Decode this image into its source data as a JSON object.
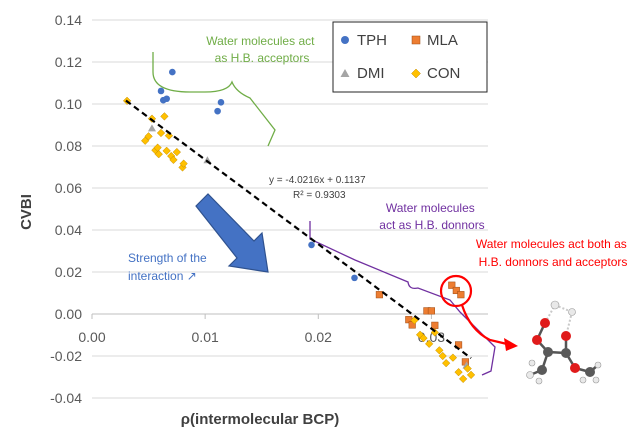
{
  "chart_data": {
    "type": "scatter",
    "xlabel": "ρ(intermolecular BCP)",
    "ylabel": "CVBI",
    "xlim": [
      0.0,
      0.035
    ],
    "ylim": [
      -0.04,
      0.14
    ],
    "x_ticks": [
      "0.00",
      "0.01",
      "0.02",
      "0.03"
    ],
    "y_ticks": [
      "0.14",
      "0.12",
      "0.10",
      "0.08",
      "0.06",
      "0.04",
      "0.02",
      "0.00",
      "-0.02",
      "-0.04"
    ],
    "grid": "horizontal",
    "legend_position": "top-right",
    "series": [
      {
        "name": "TPH",
        "marker": "circle",
        "color": "#4472C4",
        "points": [
          [
            0.0061,
            0.1062
          ],
          [
            0.0063,
            0.1018
          ],
          [
            0.0066,
            0.1025
          ],
          [
            0.0071,
            0.1152
          ],
          [
            0.0111,
            0.0966
          ],
          [
            0.0114,
            0.1008
          ],
          [
            0.0194,
            0.0329
          ],
          [
            0.0232,
            0.0172
          ]
        ]
      },
      {
        "name": "MLA",
        "marker": "square",
        "color": "#ED7D31",
        "points": [
          [
            0.0254,
            0.0092
          ],
          [
            0.028,
            -0.0027
          ],
          [
            0.0283,
            -0.0052
          ],
          [
            0.0296,
            0.0015
          ],
          [
            0.03,
            0.0015
          ],
          [
            0.0303,
            -0.0054
          ],
          [
            0.0318,
            0.0137
          ],
          [
            0.0322,
            0.0112
          ],
          [
            0.0326,
            0.0092
          ],
          [
            0.0324,
            -0.0147
          ],
          [
            0.033,
            -0.0228
          ]
        ]
      },
      {
        "name": "DMI",
        "marker": "triangle",
        "color": "#A5A5A5",
        "points": [
          [
            0.0053,
            0.0884
          ],
          [
            0.0102,
            0.0732
          ],
          [
            0.0331,
            -0.0245
          ]
        ]
      },
      {
        "name": "CON",
        "marker": "diamond",
        "color": "#FFC000",
        "points": [
          [
            0.0031,
            0.1015
          ],
          [
            0.0053,
            0.093
          ],
          [
            0.0047,
            0.0825
          ],
          [
            0.005,
            0.0846
          ],
          [
            0.0056,
            0.078
          ],
          [
            0.0058,
            0.0792
          ],
          [
            0.0059,
            0.0761
          ],
          [
            0.0061,
            0.0862
          ],
          [
            0.0064,
            0.0941
          ],
          [
            0.0066,
            0.0777
          ],
          [
            0.0068,
            0.0849
          ],
          [
            0.007,
            0.0752
          ],
          [
            0.0072,
            0.0734
          ],
          [
            0.0075,
            0.0771
          ],
          [
            0.008,
            0.0698
          ],
          [
            0.0081,
            0.0716
          ],
          [
            0.0285,
            -0.003
          ],
          [
            0.029,
            -0.0099
          ],
          [
            0.0293,
            -0.0115
          ],
          [
            0.0298,
            -0.0142
          ],
          [
            0.0303,
            -0.0088
          ],
          [
            0.0307,
            -0.0173
          ],
          [
            0.031,
            -0.02
          ],
          [
            0.0313,
            -0.0234
          ],
          [
            0.0319,
            -0.0208
          ],
          [
            0.0324,
            -0.0277
          ],
          [
            0.0328,
            -0.0309
          ],
          [
            0.0332,
            -0.026
          ],
          [
            0.0335,
            -0.029
          ]
        ]
      }
    ],
    "trendline": {
      "slope": -4.0216,
      "intercept": 0.1137,
      "x_range": [
        0.003,
        0.0335
      ],
      "color": "#000000"
    },
    "equation": "y = -4.0216x + 0.1137",
    "r_squared": "R² = 0.9303",
    "annotations": {
      "acceptors": "Water molecules act\nas H.B. acceptors",
      "donors": "Water molecules\nact as H.B. donnors",
      "both": "Water molecules act both as\nH.B. donnors and acceptors",
      "strength": "Strength of the\ninteraction ↗"
    },
    "colors": {
      "acceptors": "#70AD47",
      "donors": "#7030A0",
      "both": "#FF0000",
      "strength": "#4472C4",
      "arrow": "#4472C4"
    }
  }
}
